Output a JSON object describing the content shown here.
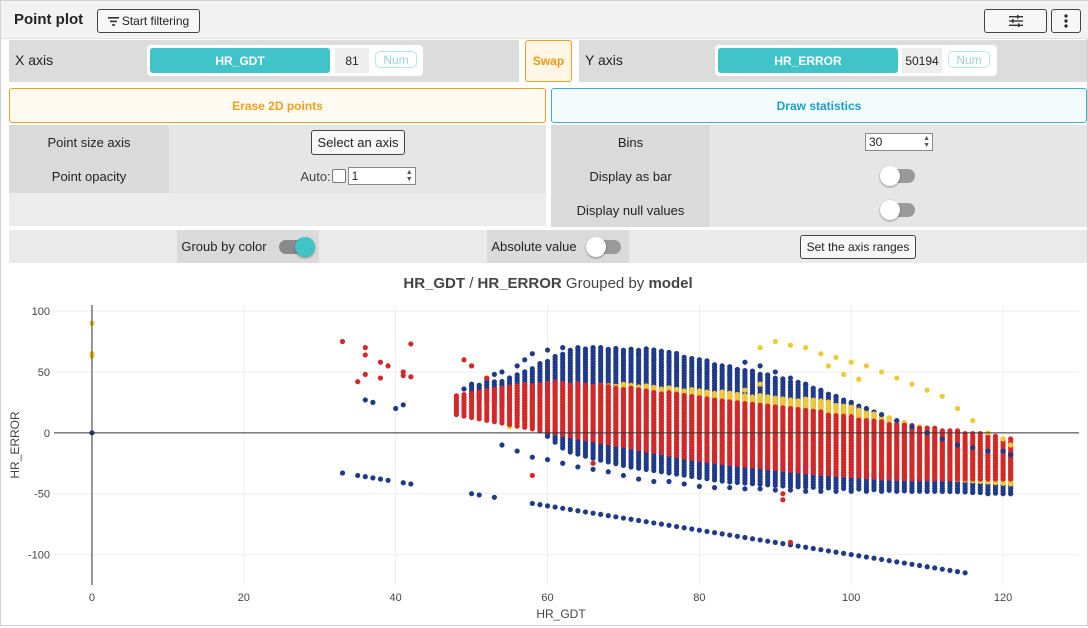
{
  "header": {
    "title": "Point plot",
    "filter_button": "Start filtering"
  },
  "x_axis": {
    "label": "X axis",
    "field": "HR_GDT",
    "count": "81",
    "type": "Num"
  },
  "y_axis": {
    "label": "Y axis",
    "field": "HR_ERROR",
    "count": "50194",
    "type": "Num"
  },
  "swap_button": "Swap",
  "erase_button": "Erase 2D points",
  "draw_button": "Draw statistics",
  "left_panel": {
    "point_size_label": "Point size axis",
    "select_axis_button": "Select an axis",
    "opacity_label": "Point opacity",
    "auto_label": "Auto:",
    "opacity_value": "1"
  },
  "right_panel": {
    "bins_label": "Bins",
    "bins_value": "30",
    "display_bar_label": "Display as bar",
    "display_null_label": "Display null values"
  },
  "group_row": {
    "group_color_label": "Groub by color",
    "absolute_label": "Absolute value",
    "ranges_button": "Set the axis ranges"
  },
  "chart_title": {
    "x_field": "HR_GDT",
    "sep": " / ",
    "y_field": "HR_ERROR",
    "grouped": " Grouped by ",
    "group_field": "model"
  },
  "colors": {
    "accent": "#40c4ca",
    "swap": "#f0a020",
    "draw": "#1a9fc5",
    "series_navy": "#1f3a8a",
    "series_red": "#d62728",
    "series_yellow": "#f2c830"
  },
  "chart_data": {
    "type": "scatter",
    "title": "HR_GDT / HR_ERROR Grouped by model",
    "xlabel": "HR_GDT",
    "ylabel": "HR_ERROR",
    "xlim": [
      -5,
      130
    ],
    "ylim": [
      -125,
      105
    ],
    "xticks": [
      0,
      20,
      40,
      60,
      80,
      100,
      120
    ],
    "yticks": [
      -100,
      -50,
      0,
      50,
      100
    ],
    "grid": true,
    "legend": "none",
    "series": [
      {
        "color": "#1f3a8a",
        "points": [
          [
            0,
            0
          ],
          [
            33,
            -33
          ],
          [
            35,
            -35
          ],
          [
            36,
            -36
          ],
          [
            37,
            -37
          ],
          [
            38,
            -38
          ],
          [
            39,
            -39
          ],
          [
            41,
            -41
          ],
          [
            42,
            -42
          ],
          [
            50,
            -50
          ],
          [
            51,
            -51
          ],
          [
            53,
            -53
          ],
          [
            58,
            -58
          ],
          [
            59,
            -59
          ],
          [
            60,
            -60
          ],
          [
            61,
            -61
          ],
          [
            62,
            -62
          ],
          [
            63,
            -63
          ],
          [
            64,
            -64
          ],
          [
            65,
            -65
          ],
          [
            66,
            -66
          ],
          [
            67,
            -67
          ],
          [
            68,
            -68
          ],
          [
            69,
            -69
          ],
          [
            70,
            -70
          ],
          [
            71,
            -71
          ],
          [
            72,
            -72
          ],
          [
            73,
            -73
          ],
          [
            74,
            -74
          ],
          [
            75,
            -75
          ],
          [
            76,
            -76
          ],
          [
            77,
            -77
          ],
          [
            78,
            -78
          ],
          [
            79,
            -79
          ],
          [
            80,
            -80
          ],
          [
            81,
            -81
          ],
          [
            82,
            -82
          ],
          [
            83,
            -83
          ],
          [
            84,
            -84
          ],
          [
            85,
            -85
          ],
          [
            86,
            -86
          ],
          [
            87,
            -87
          ],
          [
            88,
            -88
          ],
          [
            89,
            -89
          ],
          [
            90,
            -90
          ],
          [
            91,
            -91
          ],
          [
            92,
            -92
          ],
          [
            93,
            -93
          ],
          [
            94,
            -94
          ],
          [
            95,
            -95
          ],
          [
            96,
            -96
          ],
          [
            97,
            -97
          ],
          [
            98,
            -98
          ],
          [
            99,
            -99
          ],
          [
            100,
            -100
          ],
          [
            101,
            -101
          ],
          [
            102,
            -102
          ],
          [
            103,
            -103
          ],
          [
            104,
            -104
          ],
          [
            105,
            -105
          ],
          [
            106,
            -106
          ],
          [
            107,
            -107
          ],
          [
            108,
            -108
          ],
          [
            109,
            -109
          ],
          [
            110,
            -110
          ],
          [
            111,
            -111
          ],
          [
            112,
            -112
          ],
          [
            113,
            -113
          ],
          [
            114,
            -114
          ],
          [
            115,
            -115
          ],
          [
            36,
            27
          ],
          [
            37,
            25
          ],
          [
            40,
            20
          ],
          [
            41,
            23
          ],
          [
            49,
            36
          ],
          [
            50,
            40
          ],
          [
            52,
            44
          ],
          [
            53,
            48
          ],
          [
            54,
            50
          ],
          [
            56,
            55
          ],
          [
            57,
            60
          ],
          [
            58,
            65
          ],
          [
            60,
            68
          ],
          [
            62,
            70
          ],
          [
            64,
            70
          ],
          [
            66,
            70
          ],
          [
            68,
            68
          ],
          [
            70,
            66
          ],
          [
            72,
            64
          ],
          [
            74,
            60
          ],
          [
            76,
            58
          ],
          [
            78,
            55
          ],
          [
            80,
            52
          ],
          [
            82,
            50
          ],
          [
            84,
            48
          ],
          [
            85,
            52
          ],
          [
            86,
            58
          ],
          [
            88,
            55
          ],
          [
            90,
            50
          ],
          [
            92,
            45
          ],
          [
            94,
            40
          ],
          [
            96,
            35
          ],
          [
            98,
            30
          ],
          [
            100,
            25
          ],
          [
            102,
            20
          ],
          [
            104,
            15
          ],
          [
            106,
            10
          ],
          [
            108,
            5
          ],
          [
            110,
            0
          ],
          [
            112,
            -5
          ],
          [
            114,
            -10
          ],
          [
            116,
            -12
          ],
          [
            118,
            -15
          ],
          [
            120,
            -15
          ],
          [
            121,
            -18
          ],
          [
            54,
            -10
          ],
          [
            56,
            -15
          ],
          [
            58,
            -20
          ],
          [
            60,
            -22
          ],
          [
            62,
            -25
          ],
          [
            64,
            -28
          ],
          [
            66,
            -30
          ],
          [
            68,
            -32
          ],
          [
            70,
            -35
          ],
          [
            72,
            -38
          ],
          [
            74,
            -40
          ],
          [
            76,
            -40
          ],
          [
            78,
            -42
          ],
          [
            80,
            -44
          ],
          [
            82,
            -45
          ],
          [
            84,
            -45
          ],
          [
            86,
            -46
          ],
          [
            88,
            -46
          ],
          [
            90,
            -47
          ],
          [
            92,
            -47
          ],
          [
            94,
            -48
          ],
          [
            96,
            -48
          ],
          [
            98,
            -48
          ],
          [
            100,
            -48
          ],
          [
            102,
            -48
          ],
          [
            104,
            -48
          ],
          [
            106,
            -48
          ],
          [
            108,
            -48
          ],
          [
            110,
            -48
          ],
          [
            112,
            -48
          ],
          [
            114,
            -48
          ],
          [
            116,
            -49
          ],
          [
            118,
            -50
          ],
          [
            120,
            -50
          ],
          [
            121,
            -50
          ]
        ]
      },
      {
        "color": "#d62728",
        "points": [
          [
            33,
            75
          ],
          [
            36,
            70
          ],
          [
            36,
            64
          ],
          [
            38,
            58
          ],
          [
            39,
            55
          ],
          [
            42,
            73
          ],
          [
            41,
            50
          ],
          [
            36,
            48
          ],
          [
            35,
            42
          ],
          [
            38,
            45
          ],
          [
            41,
            47
          ],
          [
            42,
            46
          ],
          [
            48,
            20
          ],
          [
            50,
            25
          ],
          [
            91,
            -50
          ],
          [
            91,
            -55
          ],
          [
            58,
            -35
          ],
          [
            66,
            -25
          ],
          [
            92,
            -90
          ],
          [
            49,
            60
          ],
          [
            50,
            55
          ],
          [
            52,
            45
          ]
        ]
      },
      {
        "color": "#f2c830",
        "points": [
          [
            0,
            90
          ],
          [
            0,
            63
          ],
          [
            0,
            65
          ],
          [
            88,
            70
          ],
          [
            90,
            75
          ],
          [
            92,
            72
          ],
          [
            94,
            70
          ],
          [
            96,
            65
          ],
          [
            98,
            62
          ],
          [
            100,
            58
          ],
          [
            102,
            55
          ],
          [
            104,
            50
          ],
          [
            106,
            45
          ],
          [
            108,
            40
          ],
          [
            110,
            35
          ],
          [
            112,
            30
          ],
          [
            114,
            20
          ],
          [
            116,
            10
          ],
          [
            118,
            0
          ],
          [
            120,
            -5
          ],
          [
            121,
            -10
          ],
          [
            97,
            55
          ],
          [
            99,
            48
          ],
          [
            101,
            44
          ],
          [
            84,
            30
          ],
          [
            86,
            35
          ],
          [
            88,
            40
          ]
        ]
      }
    ],
    "bands": [
      {
        "color": "#1f3a8a",
        "x": [
          50,
          121
        ],
        "top": [
          40,
          44,
          55,
          68,
          70,
          70,
          68,
          62,
          56,
          50,
          44,
          36,
          26,
          15,
          5,
          -5,
          -13,
          -15
        ],
        "bottom": [
          30,
          22,
          5,
          -15,
          -22,
          -28,
          -32,
          -36,
          -40,
          -42,
          -44,
          -45,
          -46,
          -47,
          -48,
          -48,
          -49,
          -50
        ]
      },
      {
        "color": "#f2c830",
        "x": [
          55,
          121
        ],
        "top": [
          25,
          30,
          35,
          40,
          40,
          38,
          36,
          34,
          32,
          30,
          28,
          25,
          20,
          12,
          5,
          0,
          -5,
          -8
        ],
        "bottom": [
          5,
          5,
          5,
          2,
          0,
          -5,
          -10,
          -14,
          -18,
          -22,
          -25,
          -28,
          -30,
          -32,
          -35,
          -38,
          -40,
          -42
        ]
      },
      {
        "color": "#d62728",
        "x": [
          48,
          121
        ],
        "top": [
          32,
          36,
          40,
          42,
          40,
          38,
          35,
          32,
          28,
          25,
          22,
          18,
          14,
          10,
          6,
          3,
          0,
          -4
        ],
        "bottom": [
          15,
          10,
          5,
          0,
          -5,
          -10,
          -15,
          -20,
          -24,
          -27,
          -30,
          -33,
          -35,
          -37,
          -38,
          -38,
          -38,
          -38
        ]
      }
    ]
  }
}
